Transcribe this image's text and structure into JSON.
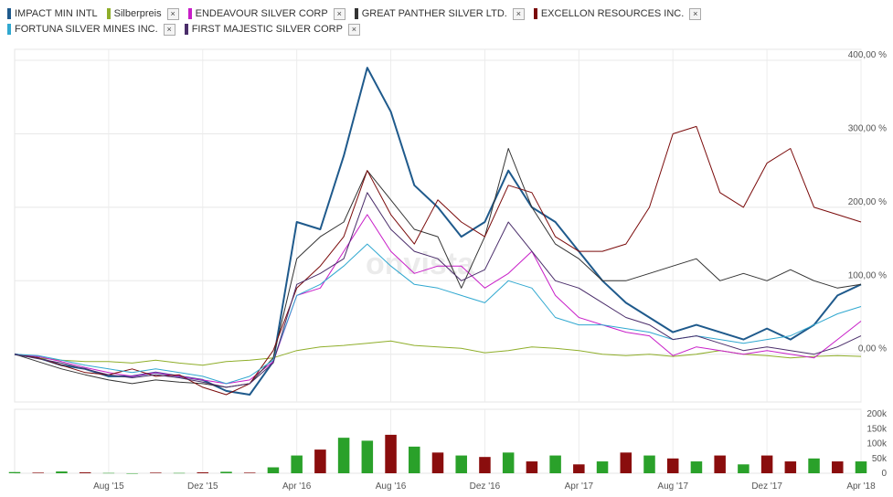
{
  "legend": [
    {
      "name": "IMPACT MIN INTL",
      "color": "#1f5a8c",
      "removable": false
    },
    {
      "name": "Silberpreis",
      "color": "#8fae2a",
      "removable": true
    },
    {
      "name": "ENDEAVOUR SILVER CORP",
      "color": "#c81ec8",
      "removable": true
    },
    {
      "name": "GREAT PANTHER SILVER LTD.",
      "color": "#333333",
      "removable": true
    },
    {
      "name": "EXCELLON RESOURCES INC.",
      "color": "#7a0a0a",
      "removable": true
    },
    {
      "name": "FORTUNA SILVER MINES INC.",
      "color": "#30a8d0",
      "removable": true
    },
    {
      "name": "FIRST MAJESTIC SILVER CORP",
      "color": "#4a2d6a",
      "removable": true
    }
  ],
  "remove_label": "×",
  "watermark": "onvista",
  "chart_data": {
    "type": "line",
    "x": [
      "2015-04",
      "2015-05",
      "2015-06",
      "2015-07",
      "2015-08",
      "2015-09",
      "2015-10",
      "2015-11",
      "2015-12",
      "2016-01",
      "2016-02",
      "2016-03",
      "2016-04",
      "2016-05",
      "2016-06",
      "2016-07",
      "2016-08",
      "2016-09",
      "2016-10",
      "2016-11",
      "2016-12",
      "2017-01",
      "2017-02",
      "2017-03",
      "2017-04",
      "2017-05",
      "2017-06",
      "2017-07",
      "2017-08",
      "2017-09",
      "2017-10",
      "2017-11",
      "2017-12",
      "2017-13",
      "2018-02",
      "2018-03",
      "2018-04"
    ],
    "x_ticks": [
      "Aug '15",
      "Dez '15",
      "Apr '16",
      "Aug '16",
      "Dez '16",
      "Apr '17",
      "Aug '17",
      "Dez '17",
      "Apr '18"
    ],
    "x_tick_index": [
      4,
      8,
      12,
      16,
      20,
      24,
      28,
      32,
      36
    ],
    "y_ticks": [
      "400,00 %",
      "300,00 %",
      "200,00 %",
      "100,00 %",
      "0,00 %"
    ],
    "y_tick_values": [
      400,
      300,
      200,
      100,
      0
    ],
    "ylim": [
      -65,
      410
    ],
    "series": [
      {
        "name": "IMPACT MIN INTL",
        "color": "#1f5a8c",
        "width": 2,
        "values": [
          0,
          -5,
          -15,
          -20,
          -30,
          -30,
          -25,
          -30,
          -35,
          -50,
          -55,
          -10,
          180,
          170,
          270,
          390,
          330,
          230,
          200,
          160,
          180,
          250,
          200,
          180,
          140,
          100,
          70,
          50,
          30,
          40,
          30,
          20,
          35,
          20,
          40,
          80,
          95
        ]
      },
      {
        "name": "Silberpreis",
        "color": "#8fae2a",
        "width": 1,
        "values": [
          0,
          -5,
          -8,
          -10,
          -10,
          -12,
          -8,
          -12,
          -15,
          -10,
          -8,
          -5,
          5,
          10,
          12,
          15,
          18,
          12,
          10,
          8,
          2,
          5,
          10,
          8,
          5,
          0,
          -2,
          0,
          -3,
          0,
          5,
          0,
          -2,
          -5,
          -3,
          -2,
          -3
        ]
      },
      {
        "name": "ENDEAVOUR SILVER CORP",
        "color": "#c81ec8",
        "width": 1,
        "values": [
          0,
          -3,
          -10,
          -18,
          -25,
          -30,
          -25,
          -30,
          -35,
          -40,
          -35,
          -10,
          80,
          90,
          140,
          190,
          140,
          110,
          120,
          120,
          90,
          110,
          140,
          80,
          50,
          40,
          30,
          25,
          -2,
          10,
          5,
          0,
          5,
          0,
          -5,
          20,
          45
        ]
      },
      {
        "name": "GREAT PANTHER SILVER LTD.",
        "color": "#333333",
        "width": 1,
        "values": [
          0,
          -10,
          -20,
          -28,
          -35,
          -40,
          -35,
          -38,
          -40,
          -45,
          -40,
          -5,
          130,
          160,
          180,
          250,
          210,
          170,
          160,
          90,
          160,
          280,
          200,
          150,
          130,
          100,
          100,
          110,
          120,
          130,
          100,
          110,
          100,
          115,
          100,
          90,
          95
        ]
      },
      {
        "name": "EXCELLON RESOURCES INC.",
        "color": "#7a0a0a",
        "width": 1,
        "values": [
          0,
          -5,
          -15,
          -25,
          -28,
          -20,
          -30,
          -28,
          -45,
          -55,
          -40,
          5,
          90,
          120,
          160,
          250,
          190,
          150,
          210,
          180,
          160,
          230,
          220,
          160,
          140,
          140,
          150,
          200,
          300,
          310,
          220,
          200,
          260,
          280,
          200,
          190,
          180
        ]
      },
      {
        "name": "FORTUNA SILVER MINES INC.",
        "color": "#30a8d0",
        "width": 1,
        "values": [
          0,
          -2,
          -8,
          -15,
          -20,
          -25,
          -20,
          -25,
          -30,
          -40,
          -30,
          -8,
          80,
          95,
          120,
          150,
          120,
          95,
          90,
          80,
          70,
          100,
          90,
          50,
          40,
          40,
          35,
          30,
          20,
          25,
          20,
          15,
          20,
          25,
          40,
          55,
          65
        ]
      },
      {
        "name": "FIRST MAJESTIC SILVER CORP",
        "color": "#4a2d6a",
        "width": 1,
        "values": [
          0,
          -6,
          -12,
          -20,
          -28,
          -32,
          -28,
          -32,
          -38,
          -45,
          -40,
          -12,
          95,
          110,
          130,
          220,
          170,
          140,
          130,
          100,
          115,
          180,
          140,
          100,
          90,
          70,
          50,
          40,
          20,
          25,
          15,
          5,
          10,
          5,
          0,
          10,
          25
        ]
      }
    ],
    "volume": {
      "y_ticks": [
        "200k",
        "150k",
        "100k",
        "50k",
        "0"
      ],
      "y_tick_values": [
        200,
        150,
        100,
        50,
        0
      ],
      "ylim": [
        0,
        210
      ],
      "up_color": "#2aa12a",
      "down_color": "#8a0d0d",
      "values": [
        4,
        2,
        6,
        3,
        1,
        0,
        2,
        1,
        3,
        5,
        2,
        20,
        60,
        80,
        120,
        110,
        130,
        90,
        70,
        60,
        55,
        70,
        40,
        60,
        30,
        40,
        70,
        60,
        50,
        40,
        60,
        30,
        60,
        40,
        50,
        40,
        40
      ],
      "signs": [
        1,
        -1,
        1,
        -1,
        1,
        1,
        -1,
        1,
        -1,
        1,
        -1,
        1,
        1,
        -1,
        1,
        1,
        -1,
        1,
        -1,
        1,
        -1,
        1,
        -1,
        1,
        -1,
        1,
        -1,
        1,
        -1,
        1,
        -1,
        1,
        -1,
        -1,
        1,
        -1,
        1
      ]
    }
  }
}
